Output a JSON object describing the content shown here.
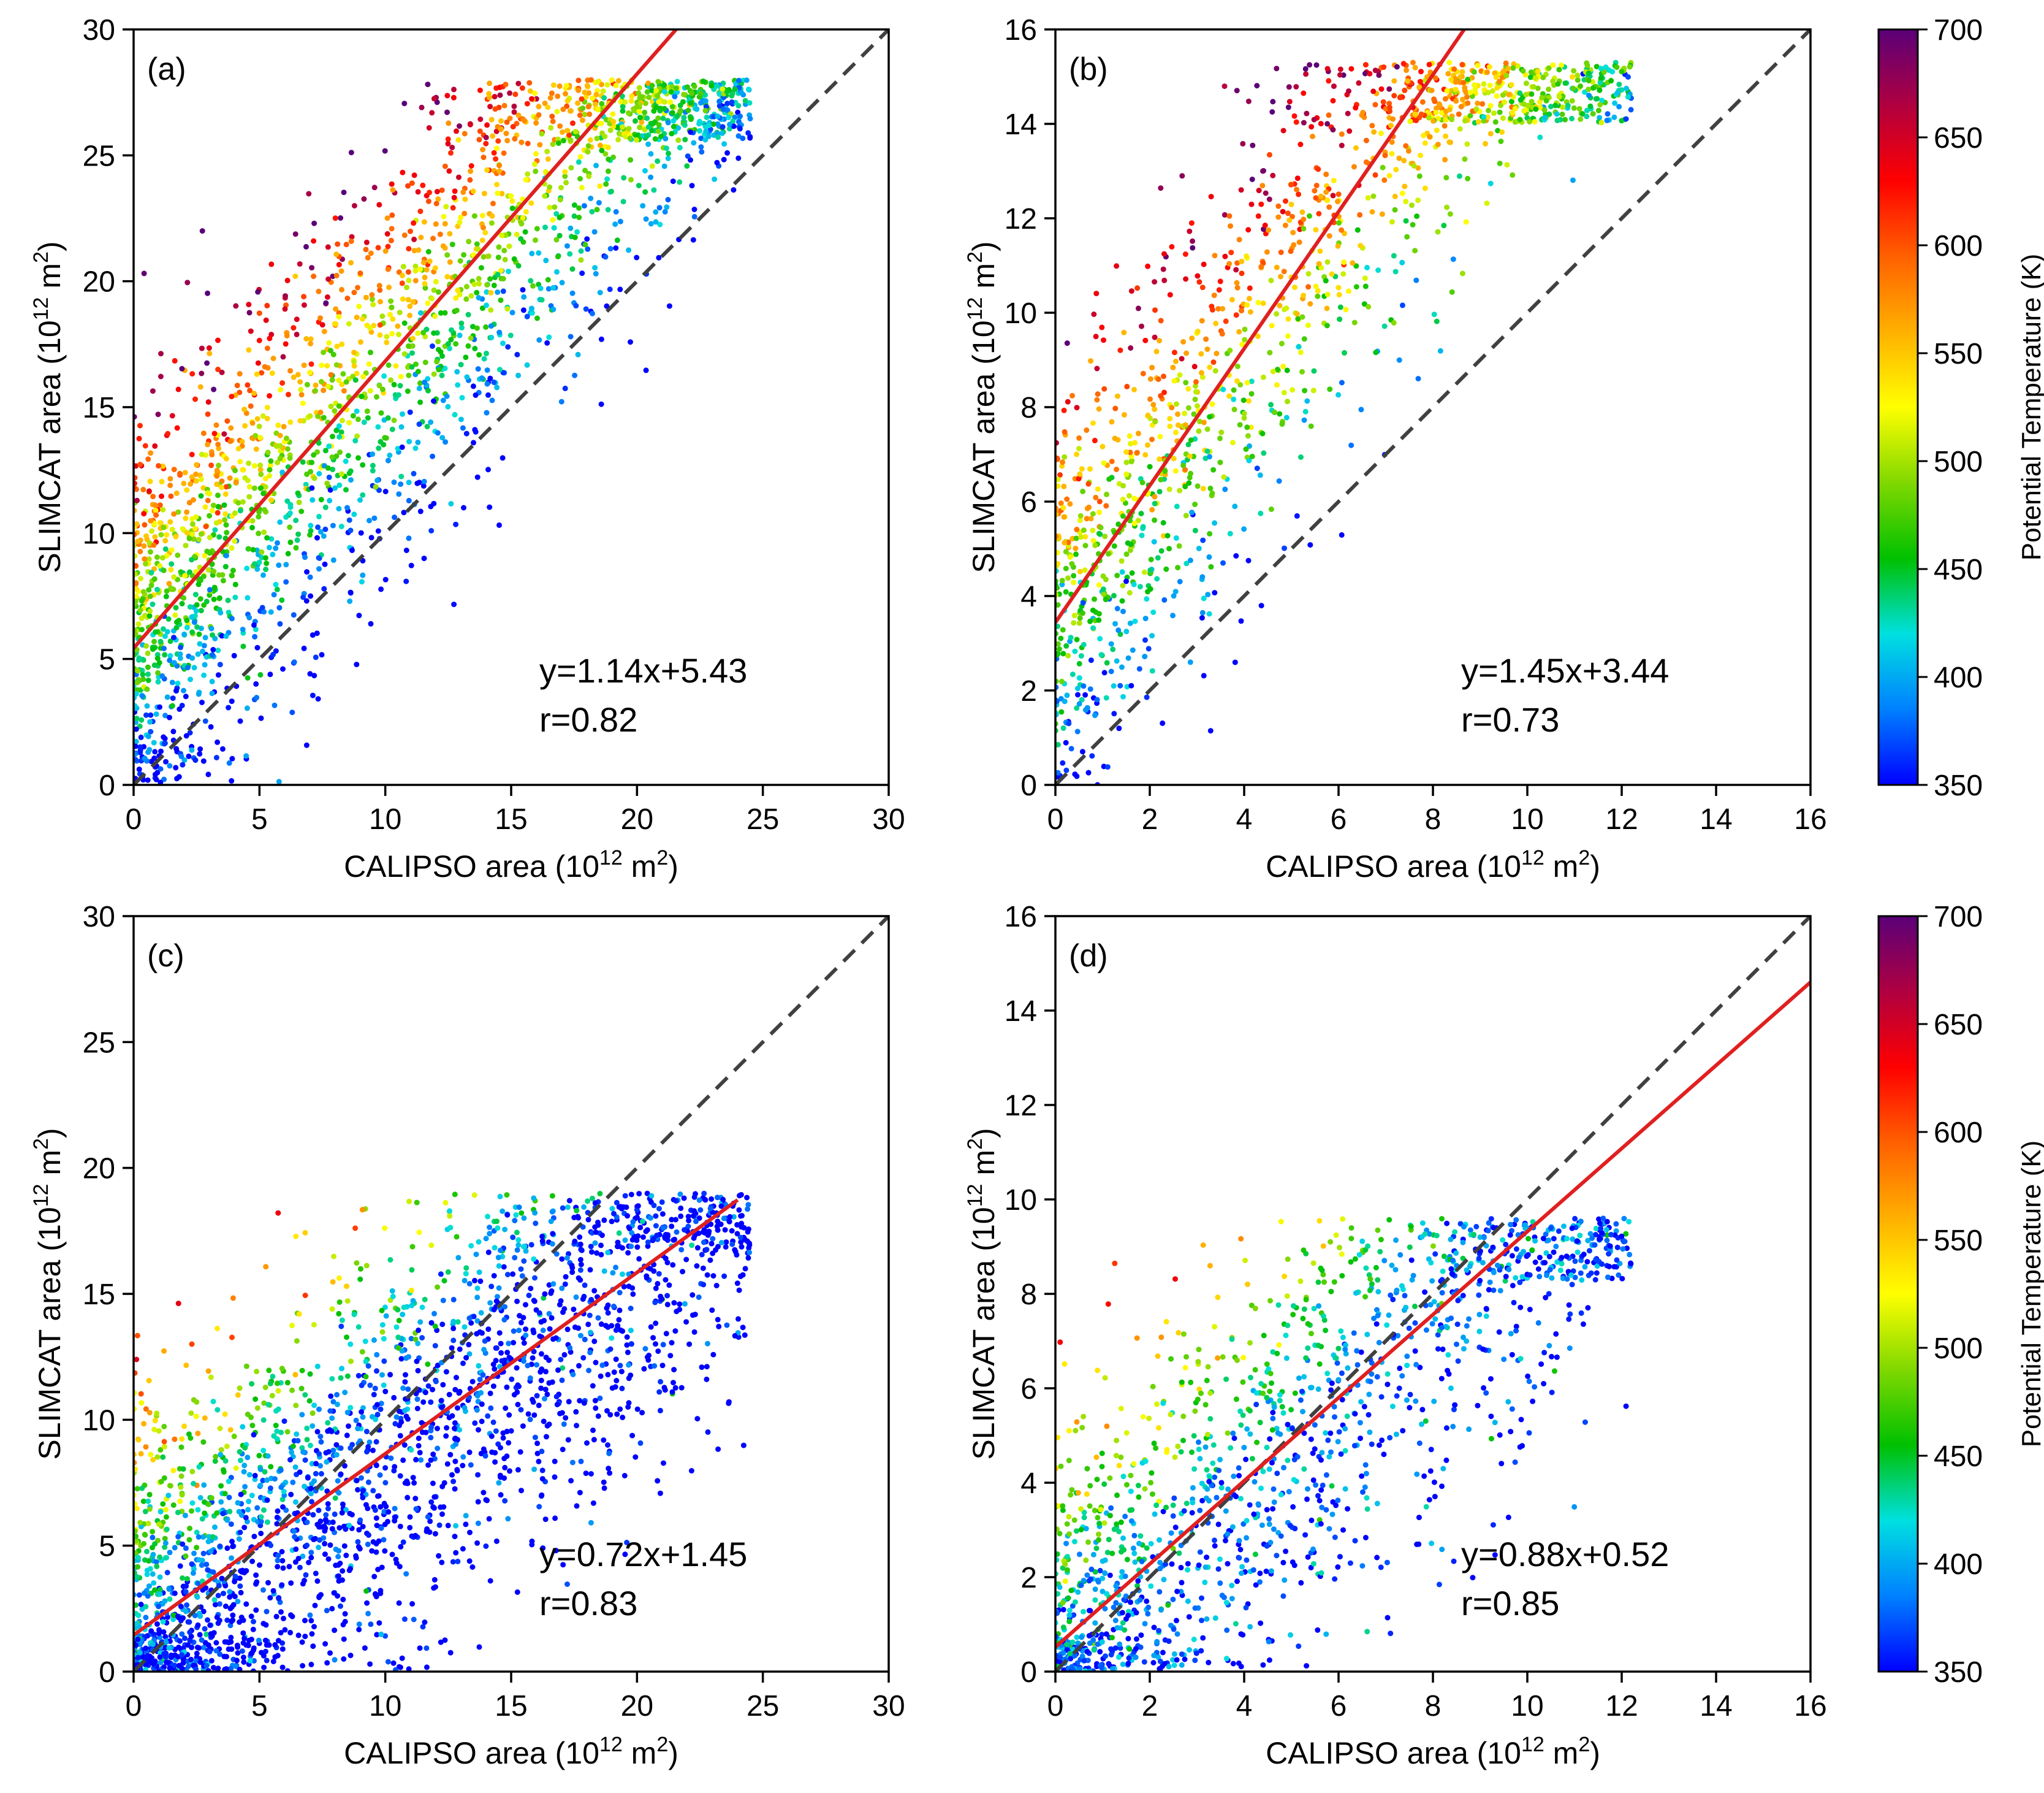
{
  "colorbar": {
    "label": "Potential Temperature (K)",
    "range": [
      350,
      700
    ],
    "ticks": [
      350,
      400,
      450,
      500,
      550,
      600,
      650,
      700
    ],
    "colormap": [
      "#0000ff",
      "#0080ff",
      "#00e0e0",
      "#00c000",
      "#80d800",
      "#ffff00",
      "#ffb000",
      "#ff6000",
      "#ff0000",
      "#b00040",
      "#5a0078"
    ]
  },
  "one_to_one_line": {
    "color": "#404040",
    "style": "dashed"
  },
  "fit_line_color": "#e02020",
  "chart_data": [
    {
      "type": "scatter",
      "panel_label": "(a)",
      "xlabel": "CALIPSO area (10",
      "ylabel": "SLIMCAT area (10",
      "label_exponent": "12",
      "label_unit": " m",
      "label_unit_exponent": "2",
      "label_close": ")",
      "xlim": [
        0,
        30
      ],
      "ylim": [
        0,
        30
      ],
      "xticks": [
        0,
        5,
        10,
        15,
        20,
        25,
        30
      ],
      "yticks": [
        0,
        5,
        10,
        15,
        20,
        25,
        30
      ],
      "fit": {
        "slope": 1.14,
        "intercept": 5.43,
        "x_range": [
          0,
          21.56
        ]
      },
      "equation": "y=1.14x+5.43",
      "r_text": "r=0.82",
      "cloud": {
        "count": 2400,
        "x_max": 24.5,
        "temp_coeffs": [
          350,
          260,
          -95,
          330
        ],
        "x_min": 0,
        "y_min": 0,
        "y_max": 28
      }
    },
    {
      "type": "scatter",
      "panel_label": "(b)",
      "xlabel": "CALIPSO area (10",
      "ylabel": "SLIMCAT area (10",
      "label_exponent": "12",
      "label_unit": " m",
      "label_unit_exponent": "2",
      "label_close": ")",
      "xlim": [
        0,
        16
      ],
      "ylim": [
        0,
        16
      ],
      "xticks": [
        0,
        2,
        4,
        6,
        8,
        10,
        12,
        14,
        16
      ],
      "yticks": [
        0,
        2,
        4,
        6,
        8,
        10,
        12,
        14,
        16
      ],
      "fit": {
        "slope": 1.45,
        "intercept": 3.44,
        "x_range": [
          0,
          8.66
        ]
      },
      "equation": "y=1.45x+3.44",
      "r_text": "r=0.73",
      "cloud": {
        "count": 1500,
        "x_max": 12.2,
        "temp_coeffs": [
          360,
          210,
          -95,
          290
        ],
        "x_min": 0,
        "y_min": 0,
        "y_max": 15.3
      }
    },
    {
      "type": "scatter",
      "panel_label": "(c)",
      "xlabel": "CALIPSO area (10",
      "ylabel": "SLIMCAT area (10",
      "label_exponent": "12",
      "label_unit": " m",
      "label_unit_exponent": "2",
      "label_close": ")",
      "xlim": [
        0,
        30
      ],
      "ylim": [
        0,
        30
      ],
      "xticks": [
        0,
        5,
        10,
        15,
        20,
        25,
        30
      ],
      "yticks": [
        0,
        5,
        10,
        15,
        20,
        25,
        30
      ],
      "fit": {
        "slope": 0.72,
        "intercept": 1.45,
        "x_range": [
          0,
          24.0
        ]
      },
      "equation": "y=0.72x+1.45",
      "r_text": "r=0.83",
      "cloud": {
        "count": 2400,
        "x_max": 24.5,
        "temp_coeffs": [
          355,
          240,
          -90,
          340
        ],
        "x_min": 0,
        "y_min": 0,
        "y_max": 19
      }
    },
    {
      "type": "scatter",
      "panel_label": "(d)",
      "xlabel": "CALIPSO area (10",
      "ylabel": "SLIMCAT area (10",
      "label_exponent": "12",
      "label_unit": " m",
      "label_unit_exponent": "2",
      "label_close": ")",
      "xlim": [
        0,
        16
      ],
      "ylim": [
        0,
        16
      ],
      "xticks": [
        0,
        2,
        4,
        6,
        8,
        10,
        12,
        14,
        16
      ],
      "yticks": [
        0,
        2,
        4,
        6,
        8,
        10,
        12,
        14,
        16
      ],
      "fit": {
        "slope": 0.88,
        "intercept": 0.52,
        "x_range": [
          0,
          16
        ]
      },
      "equation": "y=0.88x+0.52",
      "r_text": "r=0.85",
      "cloud": {
        "count": 1500,
        "x_max": 12.2,
        "temp_coeffs": [
          380,
          200,
          -80,
          310
        ],
        "x_min": 0,
        "y_min": 0,
        "y_max": 9.6
      }
    }
  ]
}
